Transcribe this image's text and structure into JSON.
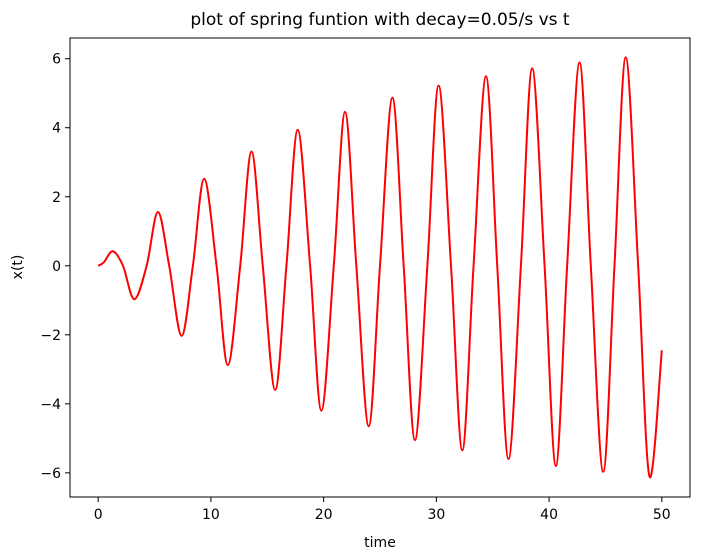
{
  "chart_data": {
    "type": "line",
    "title": "plot of spring funtion with decay=0.05/s vs t",
    "xlabel": "time",
    "ylabel": "x(t)",
    "xlim": [
      -2.5,
      52.5
    ],
    "ylim": [
      -6.7,
      6.6
    ],
    "xticks": [
      0,
      10,
      20,
      30,
      40,
      50
    ],
    "yticks": [
      -6,
      -4,
      -2,
      0,
      2,
      4,
      6
    ],
    "xtick_labels": [
      "0",
      "10",
      "20",
      "30",
      "40",
      "50"
    ],
    "ytick_labels": [
      "−6",
      "−4",
      "−2",
      "0",
      "2",
      "4",
      "6"
    ],
    "grid": false,
    "legend": "none",
    "series": [
      {
        "color": "#ff0000",
        "x": [
          0,
          0.5,
          1.3,
          2.2,
          3.2,
          4.3,
          5.3,
          6.3,
          7.4,
          8.4,
          9.4,
          10.5,
          11.5,
          12.6,
          13.6,
          14.6,
          15.7,
          16.7,
          17.7,
          18.8,
          19.8,
          20.9,
          21.9,
          22.9,
          24.0,
          25.0,
          26.1,
          27.1,
          28.1,
          29.2,
          30.2,
          31.3,
          32.3,
          33.3,
          34.4,
          35.4,
          36.4,
          37.5,
          38.5,
          39.6,
          40.6,
          41.6,
          42.7,
          43.7,
          44.8,
          45.8,
          46.8,
          47.9,
          48.9,
          50.0
        ],
        "y": [
          0,
          0.1,
          0.42,
          0,
          -0.97,
          0,
          1.56,
          0,
          -2.03,
          0,
          2.52,
          0,
          -2.88,
          0,
          3.31,
          0,
          -3.6,
          0,
          3.94,
          0,
          -4.2,
          0,
          4.46,
          0,
          -4.65,
          0,
          4.87,
          0,
          -5.05,
          0,
          5.22,
          0,
          -5.35,
          0,
          5.49,
          0,
          -5.6,
          0,
          5.72,
          0,
          -5.8,
          0,
          5.89,
          0,
          -5.97,
          0,
          6.04,
          0,
          -6.1,
          -2.45
        ]
      }
    ]
  }
}
